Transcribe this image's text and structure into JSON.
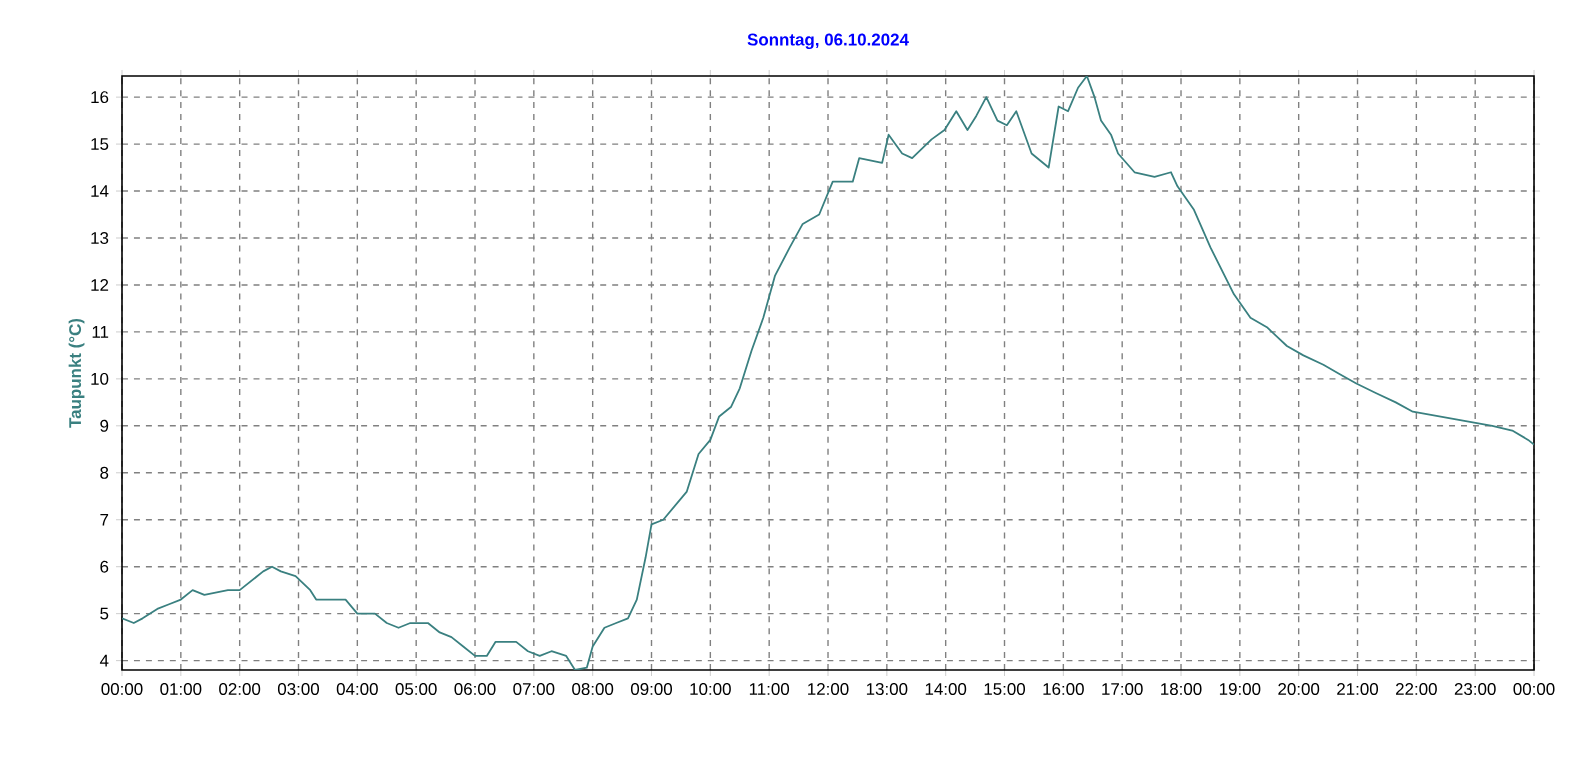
{
  "chart_data": {
    "type": "line",
    "title": "Sonntag, 06.10.2024",
    "ylabel": "Taupunkt (°C)",
    "x": [
      0.0,
      0.2,
      0.35,
      0.6,
      0.8,
      1.0,
      1.2,
      1.4,
      1.8,
      2.0,
      2.2,
      2.4,
      2.55,
      2.7,
      2.95,
      3.2,
      3.3,
      3.8,
      4.0,
      4.3,
      4.5,
      4.7,
      4.9,
      5.2,
      5.4,
      5.6,
      5.8,
      6.0,
      6.2,
      6.35,
      6.7,
      6.9,
      7.1,
      7.3,
      7.55,
      7.7,
      7.9,
      8.0,
      8.2,
      8.4,
      8.6,
      8.75,
      8.9,
      9.0,
      9.2,
      9.4,
      9.6,
      9.8,
      10.0,
      10.15,
      10.35,
      10.5,
      10.7,
      10.9,
      11.1,
      11.35,
      11.57,
      11.85,
      12.08,
      12.42,
      12.53,
      12.92,
      13.03,
      13.26,
      13.43,
      13.76,
      13.98,
      14.18,
      14.37,
      14.52,
      14.69,
      14.88,
      15.04,
      15.2,
      15.46,
      15.75,
      15.92,
      16.08,
      16.25,
      16.4,
      16.53,
      16.64,
      16.81,
      16.93,
      17.21,
      17.55,
      17.83,
      17.94,
      18.22,
      18.5,
      18.9,
      19.18,
      19.46,
      19.8,
      20.08,
      20.42,
      20.7,
      20.98,
      21.31,
      21.65,
      21.94,
      22.39,
      22.84,
      23.29,
      23.63,
      23.9,
      24.0
    ],
    "series": [
      {
        "color": "#3a8080",
        "values": [
          4.9,
          4.8,
          4.9,
          5.1,
          5.2,
          5.3,
          5.5,
          5.4,
          5.5,
          5.5,
          5.7,
          5.9,
          6.0,
          5.9,
          5.8,
          5.5,
          5.3,
          5.3,
          5.0,
          5.0,
          4.8,
          4.7,
          4.8,
          4.8,
          4.6,
          4.5,
          4.3,
          4.1,
          4.1,
          4.4,
          4.4,
          4.2,
          4.1,
          4.2,
          4.1,
          3.8,
          3.85,
          4.3,
          4.7,
          4.8,
          4.9,
          5.3,
          6.2,
          6.9,
          7.0,
          7.3,
          7.6,
          8.4,
          8.7,
          9.2,
          9.4,
          9.8,
          10.6,
          11.3,
          12.2,
          12.8,
          13.3,
          13.5,
          14.2,
          14.2,
          14.7,
          14.6,
          15.2,
          14.8,
          14.7,
          15.1,
          15.3,
          15.7,
          15.3,
          15.6,
          16.0,
          15.5,
          15.4,
          15.7,
          14.8,
          14.5,
          15.8,
          15.7,
          16.2,
          16.45,
          16.0,
          15.5,
          15.2,
          14.8,
          14.4,
          14.3,
          14.4,
          14.1,
          13.6,
          12.8,
          11.8,
          11.3,
          11.1,
          10.7,
          10.5,
          10.3,
          10.1,
          9.9,
          9.7,
          9.5,
          9.3,
          9.2,
          9.1,
          9.0,
          8.9,
          8.7,
          8.6
        ]
      }
    ],
    "xlim": [
      0,
      24
    ],
    "ylim": [
      3.8,
      16.45
    ],
    "xticks": [
      {
        "value": 0,
        "label": "00:00"
      },
      {
        "value": 1,
        "label": "01:00"
      },
      {
        "value": 2,
        "label": "02:00"
      },
      {
        "value": 3,
        "label": "03:00"
      },
      {
        "value": 4,
        "label": "04:00"
      },
      {
        "value": 5,
        "label": "05:00"
      },
      {
        "value": 6,
        "label": "06:00"
      },
      {
        "value": 7,
        "label": "07:00"
      },
      {
        "value": 8,
        "label": "08:00"
      },
      {
        "value": 9,
        "label": "09:00"
      },
      {
        "value": 10,
        "label": "10:00"
      },
      {
        "value": 11,
        "label": "11:00"
      },
      {
        "value": 12,
        "label": "12:00"
      },
      {
        "value": 13,
        "label": "13:00"
      },
      {
        "value": 14,
        "label": "14:00"
      },
      {
        "value": 15,
        "label": "15:00"
      },
      {
        "value": 16,
        "label": "16:00"
      },
      {
        "value": 17,
        "label": "17:00"
      },
      {
        "value": 18,
        "label": "18:00"
      },
      {
        "value": 19,
        "label": "19:00"
      },
      {
        "value": 20,
        "label": "20:00"
      },
      {
        "value": 21,
        "label": "21:00"
      },
      {
        "value": 22,
        "label": "22:00"
      },
      {
        "value": 23,
        "label": "23:00"
      },
      {
        "value": 24,
        "label": "00:00"
      }
    ],
    "yticks": [
      4,
      5,
      6,
      7,
      8,
      9,
      10,
      11,
      12,
      13,
      14,
      15,
      16
    ],
    "grid": true,
    "line_style": "solid",
    "marker": "none"
  }
}
